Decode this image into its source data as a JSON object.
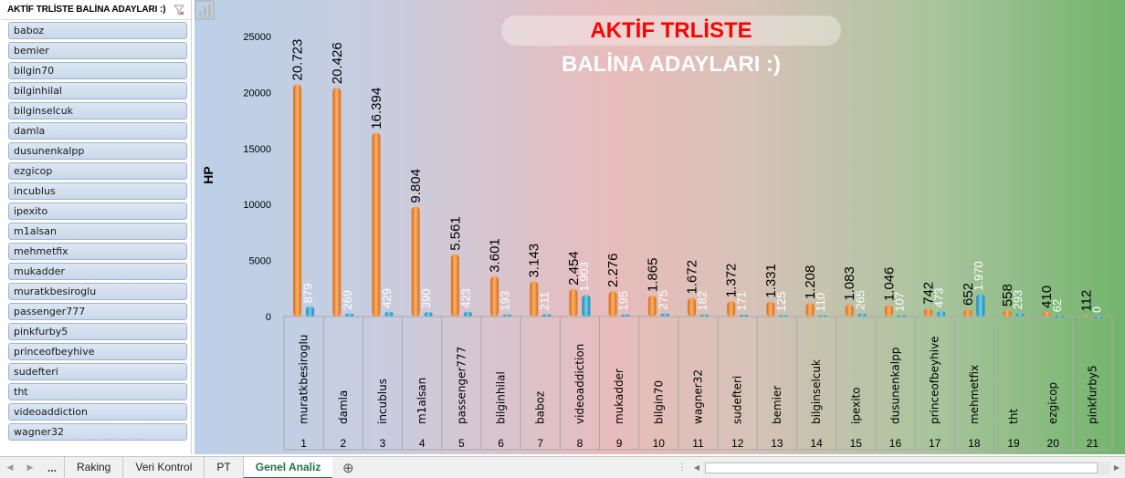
{
  "slicer": {
    "title": "AKTİF TRLİSTE BALİNA ADAYLARI :)",
    "items": [
      "baboz",
      "bemier",
      "bilgin70",
      "bilginhilal",
      "bilginselcuk",
      "damla",
      "dusunenkalpp",
      "ezgicop",
      "incublus",
      "ipexito",
      "m1alsan",
      "mehmetfix",
      "mukadder",
      "muratkbesiroglu",
      "passenger777",
      "pinkfurby5",
      "princeofbeyhive",
      "sudefteri",
      "tht",
      "videoaddiction",
      "wagner32"
    ]
  },
  "chart_data": {
    "type": "bar",
    "title_line1": "AKTİF TRLİSTE",
    "title_line2": "BALİNA ADAYLARI :)",
    "ylabel": "HP",
    "ylim": [
      0,
      25000
    ],
    "yticks": [
      "0",
      "5000",
      "10000",
      "15000",
      "20000",
      "25000"
    ],
    "categories": [
      "muratkbesiroglu",
      "damla",
      "incublus",
      "m1alsan",
      "passenger777",
      "bilginhilal",
      "baboz",
      "videoaddiction",
      "mukadder",
      "bilgin70",
      "wagner32",
      "sudefteri",
      "bemier",
      "bilginselcuk",
      "ipexito",
      "dusunenkalpp",
      "princeofbeyhive",
      "mehmetfix",
      "tht",
      "ezgicop",
      "pinkfurby5"
    ],
    "rank_labels": [
      "1",
      "2",
      "3",
      "4",
      "5",
      "6",
      "7",
      "8",
      "9",
      "10",
      "11",
      "12",
      "13",
      "14",
      "15",
      "16",
      "17",
      "18",
      "19",
      "20",
      "21"
    ],
    "series": [
      {
        "values": [
          20723,
          20426,
          16394,
          9804,
          5561,
          3601,
          3143,
          2454,
          2276,
          1865,
          1672,
          1372,
          1331,
          1208,
          1083,
          1046,
          742,
          652,
          558,
          410,
          112
        ],
        "labels": [
          "20.723",
          "20.426",
          "16.394",
          "9.804",
          "5.561",
          "3.601",
          "3.143",
          "2.454",
          "2.276",
          "1.865",
          "1.672",
          "1.372",
          "1.331",
          "1.208",
          "1.083",
          "1.046",
          "742",
          "652",
          "558",
          "410",
          "112"
        ],
        "color": "#f28a2e"
      },
      {
        "values": [
          879,
          269,
          429,
          390,
          423,
          193,
          211,
          1903,
          195,
          275,
          182,
          171,
          125,
          110,
          265,
          107,
          473,
          1970,
          293,
          62,
          0
        ],
        "labels": [
          "879",
          "269",
          "429",
          "390",
          "423",
          "193",
          "211",
          "1.903",
          "195",
          "275",
          "182",
          "171",
          "125",
          "110",
          "265",
          "107",
          "473",
          "1.970",
          "293",
          "62",
          "0"
        ],
        "color": "#2fa3c8"
      }
    ],
    "grid": false,
    "legend": "none"
  },
  "tabs": {
    "dots": "...",
    "items": [
      {
        "label": "Raking"
      },
      {
        "label": "Veri Kontrol"
      },
      {
        "label": "PT"
      },
      {
        "label": "Genel Analiz"
      }
    ]
  },
  "colors": {
    "accent": "#217346"
  }
}
